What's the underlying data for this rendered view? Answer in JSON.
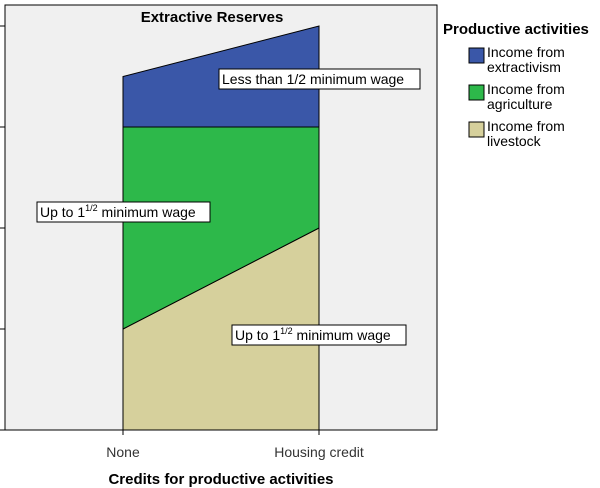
{
  "chart_data": {
    "type": "area",
    "title": "Extractive Reserves",
    "xlabel": "Credits for productive activities",
    "ylabel": "",
    "categories": [
      "None",
      "Housing credit"
    ],
    "ylim": [
      0,
      100
    ],
    "grid": false,
    "stacked": true,
    "series": [
      {
        "key": "livestock",
        "name": "Income from livestock",
        "values": [
          25,
          50
        ],
        "color": "#d6d09c"
      },
      {
        "key": "agriculture",
        "name": "Income from agriculture",
        "values": [
          50,
          25
        ],
        "color": "#2db84a"
      },
      {
        "key": "extractivism",
        "name": "Income from extractivism",
        "values": [
          12.5,
          25
        ],
        "color": "#3a57a8"
      }
    ],
    "legend": {
      "title": "Productive activities",
      "placement": "right",
      "items": [
        {
          "series": "extractivism",
          "line1": "Income from",
          "line2": "extractivism"
        },
        {
          "series": "agriculture",
          "line1": "Income from",
          "line2": "agriculture"
        },
        {
          "series": "livestock",
          "line1": "Income from",
          "line2": "livestock"
        }
      ]
    },
    "annotations": [
      {
        "series": "extractivism",
        "category": "Housing credit",
        "label": "Less than 1/2 minimum wage"
      },
      {
        "series": "agriculture",
        "category": "None",
        "label_main": "Up to 1",
        "label_sup": "1/2",
        "label_rest": " minimum wage"
      },
      {
        "series": "livestock",
        "category": "Housing credit",
        "label_main": "Up to 1",
        "label_sup": "1/2",
        "label_rest": " minimum wage"
      }
    ],
    "colors": {
      "plot_background": "#f0f0f0",
      "axis": "#000000"
    }
  }
}
